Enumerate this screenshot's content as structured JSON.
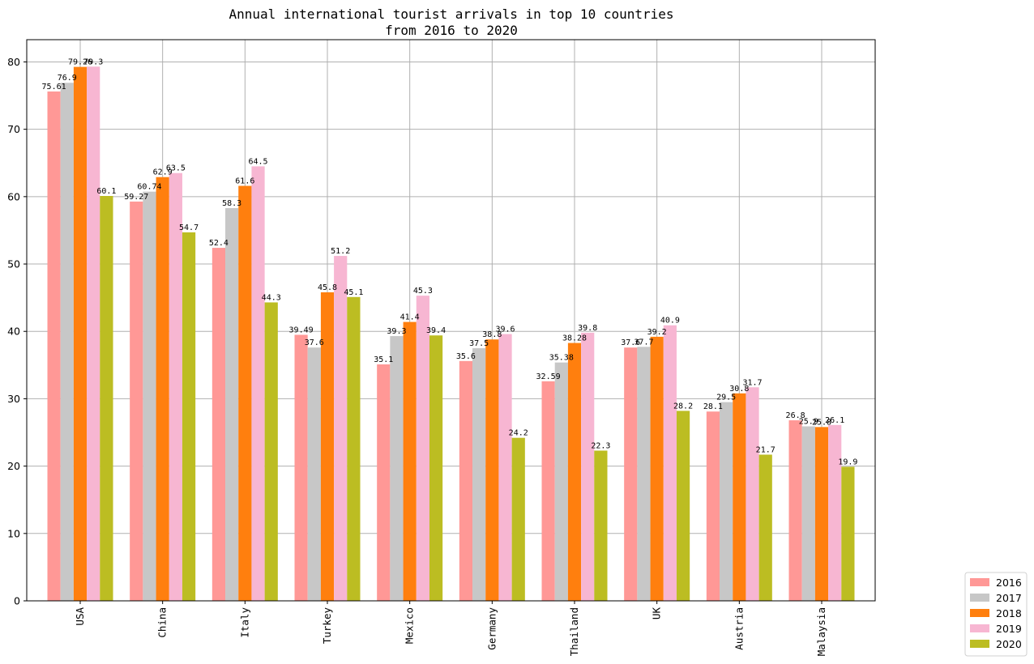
{
  "chart_data": {
    "type": "bar",
    "title": "Annual international tourist arrivals in top 10 countries\nfrom 2016 to 2020",
    "xlabel": "",
    "ylabel": "",
    "ylim": [
      0,
      83.3
    ],
    "yticks": [
      0,
      10,
      20,
      30,
      40,
      50,
      60,
      70,
      80
    ],
    "grid": true,
    "legend_position": "outside-bottom-right",
    "categories": [
      "USA",
      "China",
      "Italy",
      "Turkey",
      "Mexico",
      "Germany",
      "Thailand",
      "UK",
      "Austria",
      "Malaysia"
    ],
    "series": [
      {
        "name": "2016",
        "color": "#ff9896",
        "values": [
          75.61,
          59.27,
          52.4,
          39.49,
          35.1,
          35.6,
          32.59,
          37.6,
          28.1,
          26.8
        ]
      },
      {
        "name": "2017",
        "color": "#c7c7c7",
        "values": [
          76.9,
          60.74,
          58.3,
          37.6,
          39.3,
          37.5,
          35.38,
          37.7,
          29.5,
          25.9
        ]
      },
      {
        "name": "2018",
        "color": "#ff7f0e",
        "values": [
          79.26,
          62.9,
          61.6,
          45.8,
          41.4,
          38.8,
          38.28,
          39.2,
          30.8,
          25.8
        ]
      },
      {
        "name": "2019",
        "color": "#f7b6d2",
        "values": [
          79.3,
          63.5,
          64.5,
          51.2,
          45.3,
          39.6,
          39.8,
          40.9,
          31.7,
          26.1
        ]
      },
      {
        "name": "2020",
        "color": "#bcbd22",
        "values": [
          60.1,
          54.7,
          44.3,
          45.1,
          39.4,
          24.2,
          22.3,
          28.2,
          21.7,
          19.9
        ]
      }
    ]
  }
}
